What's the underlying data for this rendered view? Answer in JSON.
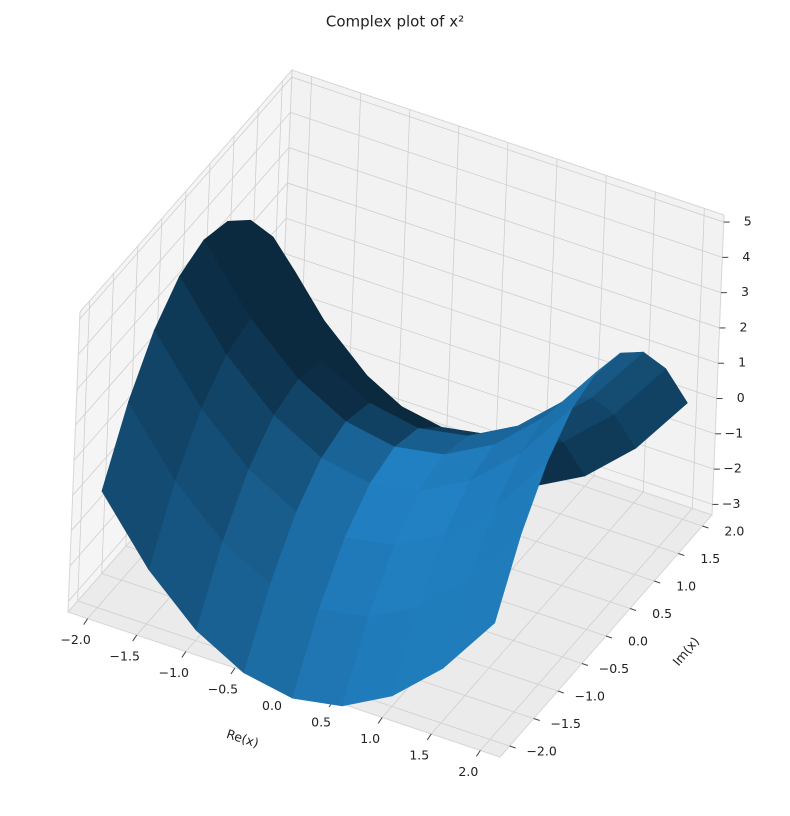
{
  "chart_data": {
    "type": "surface",
    "title": "Complex plot of x²",
    "xlabel": "Re(x)",
    "ylabel": "Im(x)",
    "x": [
      -2,
      -1.5,
      -1,
      -0.5,
      0,
      0.5,
      1,
      1.5,
      2
    ],
    "y": [
      -2,
      -1.5,
      -1,
      -0.5,
      0,
      0.5,
      1,
      1.5,
      2
    ],
    "z": [
      [
        0,
        -1.75,
        -3,
        -3.75,
        -4,
        -3.75,
        -3,
        -1.75,
        0
      ],
      [
        1.75,
        0,
        -1.25,
        -2,
        -2.25,
        -2,
        -1.25,
        0,
        1.75
      ],
      [
        3,
        1.25,
        0,
        -0.75,
        -1,
        -0.75,
        0,
        1.25,
        3
      ],
      [
        3.75,
        2,
        0.75,
        0,
        -0.25,
        0,
        0.75,
        2,
        3.75
      ],
      [
        4,
        2.25,
        1,
        0.25,
        0,
        0.25,
        1,
        2.25,
        4
      ],
      [
        3.75,
        2,
        0.75,
        0,
        -0.25,
        0,
        0.75,
        2,
        3.75
      ],
      [
        3,
        1.25,
        0,
        -0.75,
        -1,
        -0.75,
        0,
        1.25,
        3
      ],
      [
        1.75,
        0,
        -1.25,
        -2,
        -2.25,
        -2,
        -1.25,
        0,
        1.75
      ],
      [
        0,
        -1.75,
        -3,
        -3.75,
        -4,
        -3.75,
        -3,
        -1.75,
        0
      ]
    ],
    "color": "#1f77b4",
    "xlim": [
      -2.2,
      2.2
    ],
    "ylim": [
      -2.2,
      2.2
    ],
    "zlim": [
      -3.3,
      5.2
    ],
    "xticks": [
      {
        "value": -2,
        "label": "−2.0"
      },
      {
        "value": -1.5,
        "label": "−1.5"
      },
      {
        "value": -1,
        "label": "−1.0"
      },
      {
        "value": -0.5,
        "label": "−0.5"
      },
      {
        "value": 0,
        "label": "0.0"
      },
      0.5,
      {
        "value": 1,
        "label": "1.0"
      },
      1.5,
      {
        "value": 2,
        "label": "2.0"
      }
    ],
    "yticks": [
      {
        "value": -2,
        "label": "−2.0"
      },
      {
        "value": -1.5,
        "label": "−1.5"
      },
      {
        "value": -1,
        "label": "−1.0"
      },
      {
        "value": -0.5,
        "label": "−0.5"
      },
      {
        "value": 0,
        "label": "0.0"
      },
      0.5,
      {
        "value": 1,
        "label": "1.0"
      },
      1.5,
      {
        "value": 2,
        "label": "2.0"
      }
    ],
    "zticks": [
      {
        "value": -3,
        "label": "−3"
      },
      {
        "value": -2,
        "label": "−2"
      },
      {
        "value": -1,
        "label": "−1"
      },
      0,
      1,
      2,
      3,
      4,
      5
    ],
    "grid": true
  }
}
